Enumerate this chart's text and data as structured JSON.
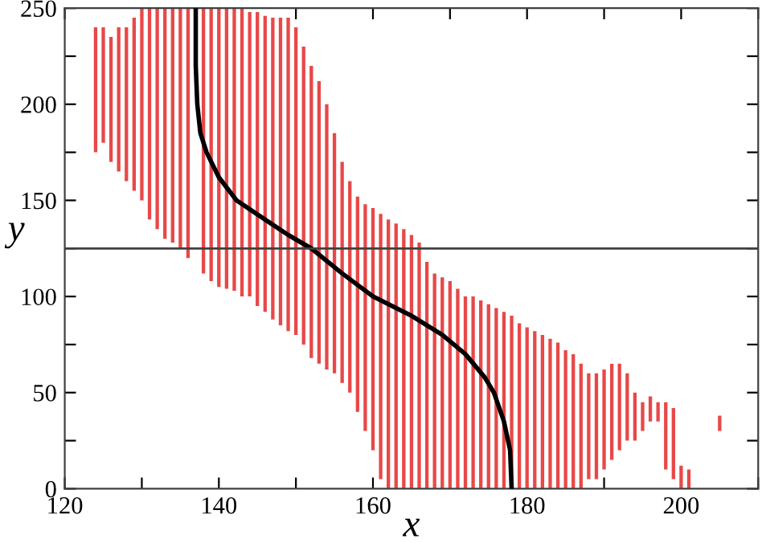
{
  "chart_data": {
    "type": "bar",
    "xlabel": "x",
    "ylabel": "y",
    "xlim": [
      120,
      210
    ],
    "ylim": [
      0,
      250
    ],
    "xticks": [
      120,
      {
        "value": 130,
        "label": null
      },
      140,
      {
        "value": 150,
        "label": null
      },
      160,
      {
        "value": 170,
        "label": null
      },
      180,
      {
        "value": 190,
        "label": null
      },
      200,
      {
        "value": 210,
        "label": null
      }
    ],
    "yticks": [
      0,
      {
        "value": 25,
        "label": null
      },
      50,
      {
        "value": 75,
        "label": null
      },
      100,
      {
        "value": 125,
        "label": null
      },
      150,
      {
        "value": 175,
        "label": null
      },
      200,
      {
        "value": 225,
        "label": null
      },
      250
    ],
    "grid": false,
    "legend": false,
    "ref_lines": [
      {
        "axis": "y",
        "value": 125,
        "color": "#404040"
      }
    ],
    "series": [
      {
        "color": "#e84848",
        "x": [
          124,
          125,
          126,
          127,
          128,
          129,
          130,
          131,
          132,
          133,
          134,
          135,
          136,
          138,
          139,
          140,
          141,
          142,
          143,
          144,
          145,
          146,
          147,
          148,
          149,
          150,
          151,
          152,
          153,
          154,
          155,
          156,
          157,
          158,
          159,
          160,
          161,
          162,
          163,
          164,
          165,
          166,
          167,
          168,
          169,
          170,
          171,
          172,
          173,
          174,
          175,
          176,
          177,
          178,
          179,
          180,
          181,
          182,
          183,
          184,
          185,
          186,
          187,
          188,
          189,
          190,
          191,
          192,
          193,
          194,
          195,
          196,
          197,
          198,
          199,
          200,
          201,
          205
        ],
        "base": [
          175,
          180,
          170,
          165,
          160,
          155,
          150,
          140,
          135,
          130,
          128,
          125,
          120,
          112,
          108,
          105,
          104,
          103,
          100,
          100,
          95,
          92,
          88,
          85,
          82,
          80,
          75,
          68,
          65,
          62,
          60,
          55,
          50,
          40,
          30,
          20,
          5,
          0,
          0,
          0,
          0,
          0,
          0,
          0,
          0,
          0,
          0,
          0,
          0,
          0,
          0,
          0,
          0,
          0,
          0,
          0,
          0,
          0,
          0,
          0,
          0,
          0,
          0,
          5,
          5,
          10,
          15,
          20,
          25,
          25,
          30,
          35,
          35,
          10,
          5,
          0,
          0,
          30
        ],
        "values": [
          65,
          60,
          65,
          75,
          80,
          90,
          100,
          110,
          115,
          120,
          122,
          125,
          130,
          138,
          142,
          145,
          146,
          147,
          150,
          148,
          153,
          154,
          157,
          160,
          163,
          160,
          155,
          152,
          147,
          138,
          125,
          115,
          110,
          112,
          118,
          126,
          138,
          140,
          138,
          135,
          132,
          128,
          118,
          112,
          110,
          108,
          104,
          100,
          100,
          98,
          96,
          94,
          92,
          90,
          86,
          84,
          82,
          80,
          78,
          76,
          72,
          70,
          65,
          55,
          55,
          52,
          50,
          45,
          35,
          25,
          15,
          13,
          10,
          35,
          37,
          12,
          10,
          8
        ]
      },
      {
        "type": "line",
        "color": "#000000",
        "line_style": "solid",
        "marker": "none",
        "x": [
          137,
          137,
          137.2,
          137.6,
          138.4,
          140,
          142.3,
          146,
          149,
          152,
          156,
          160,
          165,
          169,
          172,
          174.5,
          175.7,
          177,
          177.8,
          178
        ],
        "values": [
          250,
          220,
          200,
          185,
          175,
          162,
          150,
          140,
          132,
          125,
          112,
          100,
          90,
          80,
          70,
          58,
          50,
          35,
          20,
          0
        ]
      }
    ]
  }
}
